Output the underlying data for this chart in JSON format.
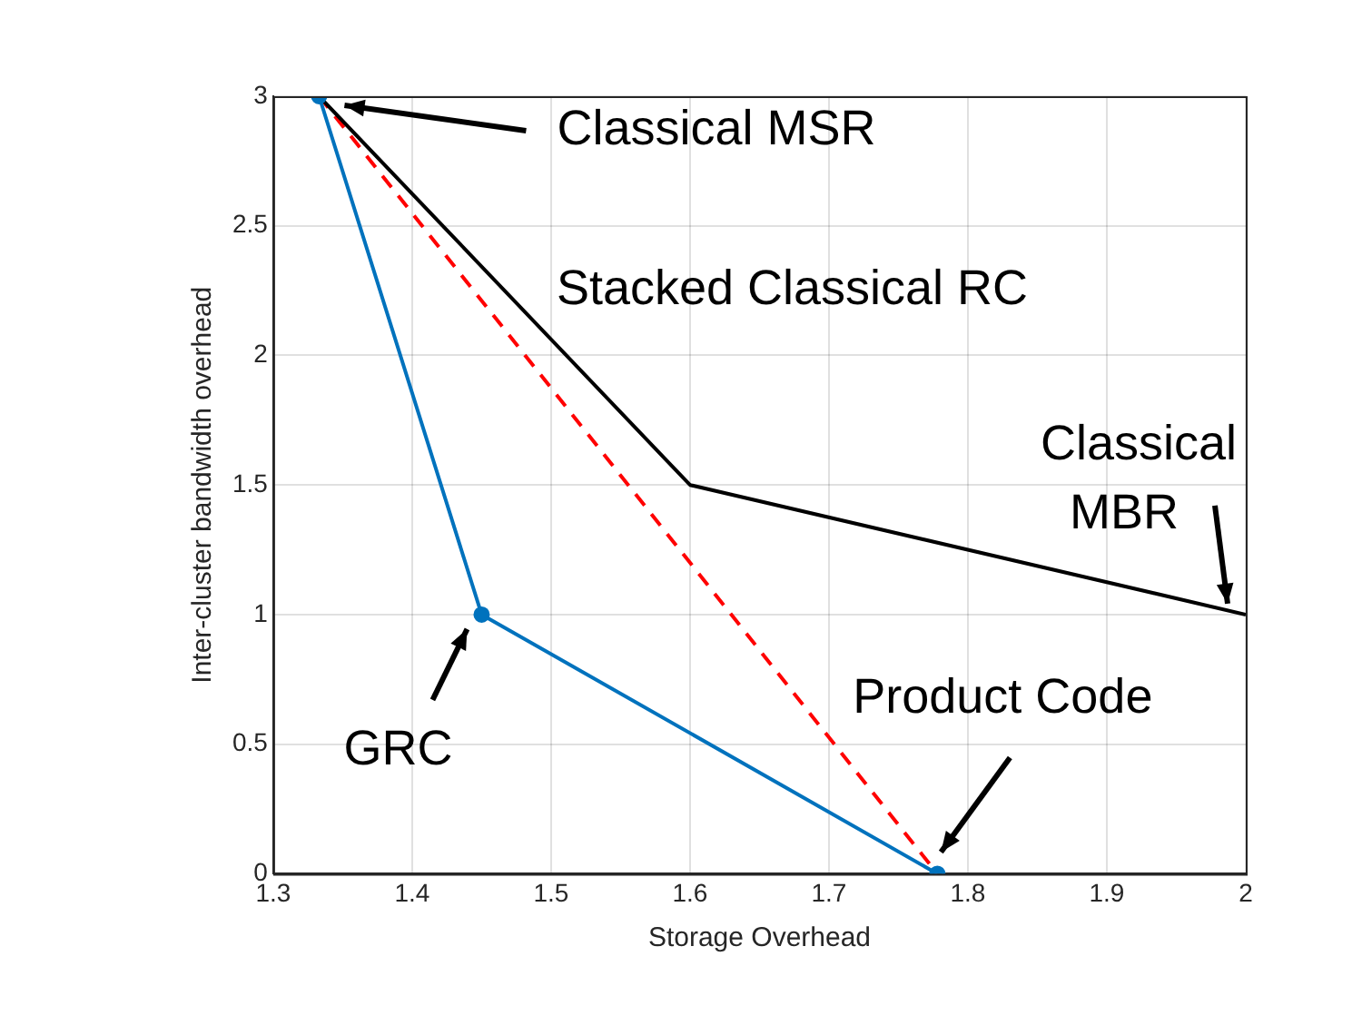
{
  "chart_data": {
    "type": "line",
    "xlabel": "Storage Overhead",
    "ylabel": "Inter-cluster bandwidth overhead",
    "xlim": [
      1.3,
      2
    ],
    "xticks": [
      1.3,
      1.4,
      1.5,
      1.6,
      1.7,
      1.8,
      1.9,
      2
    ],
    "ylim": [
      0,
      3
    ],
    "yticks": [
      0,
      0.5,
      1,
      1.5,
      2,
      2.5,
      3
    ],
    "grid": true,
    "legend": false,
    "series": [
      {
        "color": "#0072bd",
        "x": [
          1.333,
          1.45,
          1.778
        ],
        "values": [
          3,
          1,
          0
        ],
        "marker": "circle",
        "line_style": "solid"
      },
      {
        "color": "#000000",
        "x": [
          1.333,
          1.6,
          2
        ],
        "values": [
          3,
          1.5,
          1
        ],
        "marker": "none",
        "line_style": "solid"
      },
      {
        "color": "#ff0000",
        "x": [
          1.333,
          1.778
        ],
        "values": [
          3,
          0
        ],
        "marker": "none",
        "line_style": "dashed"
      }
    ],
    "annotations": [
      "Classical MSR",
      "Stacked Classical RC",
      {
        "text": "Classical MBR",
        "x": 2,
        "y": 1
      },
      {
        "text": "GRC",
        "x": 1.45,
        "y": 1
      },
      "Product Code"
    ]
  }
}
